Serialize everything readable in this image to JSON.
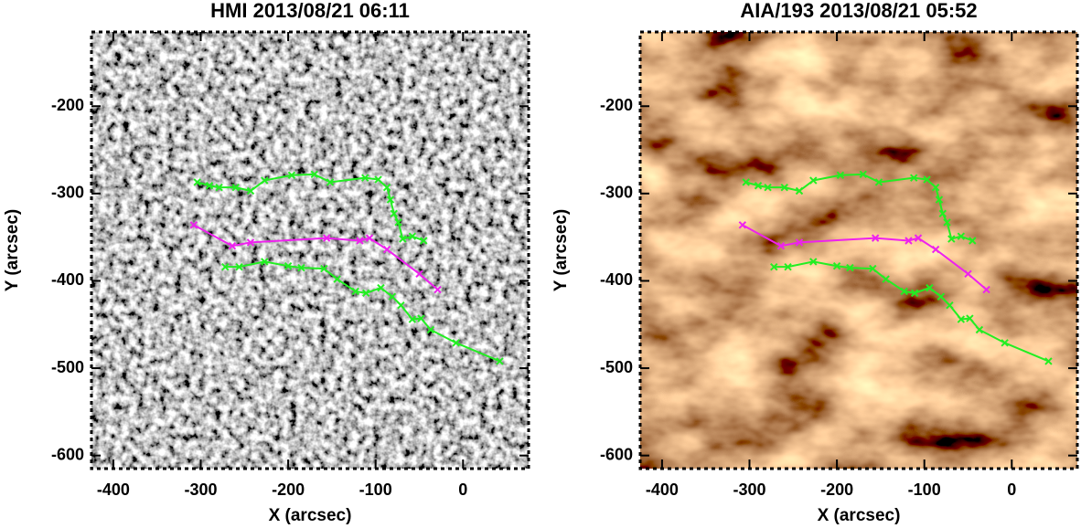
{
  "chart_data": [
    {
      "type": "line",
      "title": "HMI 2013/08/21 06:11",
      "xlabel": "X (arcsec)",
      "ylabel": "Y (arcsec)",
      "xlim": [
        -425,
        75
      ],
      "ylim": [
        -615,
        -115
      ],
      "xticks": [
        -400,
        -300,
        -200,
        -100,
        0
      ],
      "yticks": [
        -200,
        -300,
        -400,
        -500,
        -600
      ],
      "background": "magnetogram",
      "marker": "x",
      "series": [
        {
          "color": "#22ee22",
          "x": [
            -304,
            -290,
            -279,
            -260,
            -243,
            -227,
            -196,
            -170,
            -152,
            -112,
            -97,
            -87,
            -83,
            -79,
            -74,
            -69,
            -58,
            -45
          ],
          "values": [
            -287,
            -291,
            -293,
            -293,
            -297,
            -285,
            -279,
            -278,
            -287,
            -282,
            -284,
            -293,
            -307,
            -323,
            -333,
            -352,
            -349,
            -354
          ]
        },
        {
          "color": "#ee22ee",
          "x": [
            -308,
            -264,
            -243,
            -156,
            -118,
            -107,
            -87,
            -50,
            -29
          ],
          "values": [
            -336,
            -360,
            -356,
            -351,
            -354,
            -351,
            -364,
            -392,
            -410
          ]
        },
        {
          "color": "#22ee22",
          "x": [
            -272,
            -256,
            -227,
            -200,
            -185,
            -159,
            -144,
            -123,
            -111,
            -94,
            -81,
            -71,
            -58,
            -48,
            -37,
            -8,
            42
          ],
          "values": [
            -384,
            -384,
            -378,
            -383,
            -385,
            -386,
            -398,
            -412,
            -414,
            -408,
            -418,
            -428,
            -444,
            -443,
            -456,
            -471,
            -492
          ]
        }
      ]
    },
    {
      "type": "line",
      "title": "AIA/193 2013/08/21 05:52",
      "xlabel": "X (arcsec)",
      "ylabel": "Y (arcsec)",
      "xlim": [
        -425,
        75
      ],
      "ylim": [
        -615,
        -115
      ],
      "xticks": [
        -400,
        -300,
        -200,
        -100,
        0
      ],
      "yticks": [
        -200,
        -300,
        -400,
        -500,
        -600
      ],
      "background": "euv",
      "marker": "x",
      "series": [
        {
          "color": "#22ee22",
          "x": [
            -304,
            -290,
            -279,
            -260,
            -243,
            -227,
            -196,
            -170,
            -152,
            -112,
            -97,
            -87,
            -83,
            -79,
            -74,
            -69,
            -58,
            -45
          ],
          "values": [
            -287,
            -291,
            -293,
            -293,
            -297,
            -285,
            -279,
            -278,
            -287,
            -282,
            -284,
            -293,
            -307,
            -323,
            -333,
            -352,
            -349,
            -354
          ]
        },
        {
          "color": "#ee22ee",
          "x": [
            -308,
            -264,
            -243,
            -156,
            -118,
            -107,
            -87,
            -50,
            -29
          ],
          "values": [
            -336,
            -360,
            -356,
            -351,
            -354,
            -351,
            -364,
            -392,
            -410
          ]
        },
        {
          "color": "#22ee22",
          "x": [
            -272,
            -256,
            -227,
            -200,
            -185,
            -159,
            -144,
            -123,
            -111,
            -94,
            -81,
            -71,
            -58,
            -48,
            -37,
            -8,
            42
          ],
          "values": [
            -384,
            -384,
            -378,
            -383,
            -385,
            -386,
            -398,
            -412,
            -414,
            -408,
            -418,
            -428,
            -444,
            -443,
            -456,
            -471,
            -492
          ]
        }
      ]
    }
  ]
}
